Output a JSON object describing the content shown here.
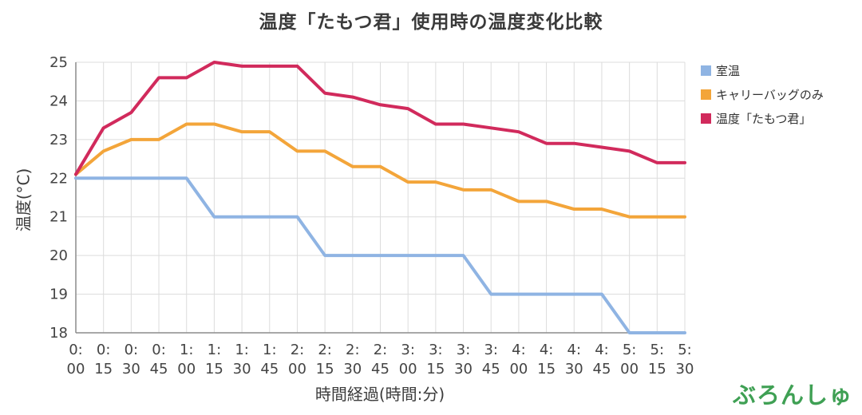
{
  "watermark": "ぶろんしゅ",
  "chart_data": {
    "type": "line",
    "title": "温度「たもつ君」使用時の温度変化比較",
    "xlabel": "時間経過(時間:分)",
    "ylabel": "温度(°C)",
    "ylim": [
      18,
      25
    ],
    "y_tick_step": 1,
    "grid": true,
    "legend_position": "right",
    "categories": [
      "0:00",
      "0:15",
      "0:30",
      "0:45",
      "1:00",
      "1:15",
      "1:30",
      "1:45",
      "2:00",
      "2:15",
      "2:30",
      "2:45",
      "3:00",
      "3:15",
      "3:30",
      "3:45",
      "4:00",
      "4:15",
      "4:30",
      "4:45",
      "5:00",
      "5:15",
      "5:30"
    ],
    "series": [
      {
        "name": "室温",
        "color": "#8fb4e3",
        "values": [
          22,
          22,
          22,
          22,
          22,
          21,
          21,
          21,
          21,
          20,
          20,
          20,
          20,
          20,
          20,
          19,
          19,
          19,
          19,
          19,
          18,
          18,
          18
        ]
      },
      {
        "name": "キャリーバッグのみ",
        "color": "#f3a53a",
        "values": [
          22.1,
          22.7,
          23.0,
          23.0,
          23.4,
          23.4,
          23.2,
          23.2,
          22.7,
          22.7,
          22.3,
          22.3,
          21.9,
          21.9,
          21.7,
          21.7,
          21.4,
          21.4,
          21.2,
          21.2,
          21.0,
          21.0,
          21.0
        ]
      },
      {
        "name": "温度「たもつ君」",
        "color": "#d12a5c",
        "values": [
          22.1,
          23.3,
          23.7,
          24.6,
          24.6,
          25.0,
          24.9,
          24.9,
          24.9,
          24.2,
          24.1,
          23.9,
          23.8,
          23.4,
          23.4,
          23.3,
          23.2,
          22.9,
          22.9,
          22.8,
          22.7,
          22.4,
          22.4
        ]
      }
    ],
    "colors": {
      "grid": "#dcdcdc",
      "axis": "#8c8c8c",
      "tick_text": "#444444",
      "watermark_green": "#3fa054"
    }
  }
}
